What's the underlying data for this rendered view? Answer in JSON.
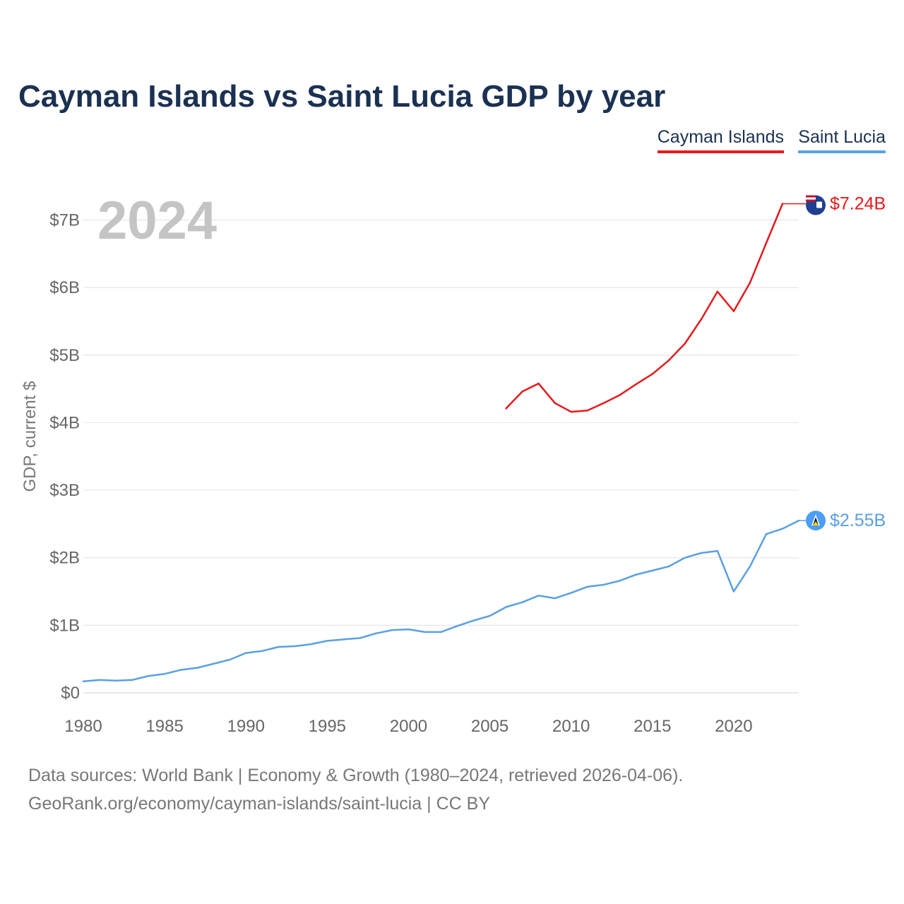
{
  "chart_data": {
    "type": "line",
    "title": "Cayman Islands vs Saint Lucia GDP by year",
    "ylabel": "GDP, current $",
    "xlabel": "",
    "year_label": "2024",
    "xlim": [
      1980,
      2024
    ],
    "ylim": [
      0,
      7.24
    ],
    "x_ticks": [
      1980,
      1985,
      1990,
      1995,
      2000,
      2005,
      2010,
      2015,
      2020
    ],
    "x_tick_labels": [
      "1980",
      "1985",
      "1990",
      "1995",
      "2000",
      "2005",
      "2010",
      "2015",
      "2020"
    ],
    "y_ticks": [
      0,
      1,
      2,
      3,
      4,
      5,
      6,
      7
    ],
    "y_tick_labels": [
      "$0",
      "$1B",
      "$2B",
      "$3B",
      "$4B",
      "$5B",
      "$6B",
      "$7B"
    ],
    "grid": true,
    "legend_position": "top-right",
    "series": [
      {
        "name": "Cayman Islands",
        "color": "#e41a1c",
        "end_label": "$7.24B",
        "flag_icon": "cayman-islands-flag-icon",
        "x": [
          2006,
          2007,
          2008,
          2009,
          2010,
          2011,
          2012,
          2013,
          2014,
          2015,
          2016,
          2017,
          2018,
          2019,
          2020,
          2021,
          2022,
          2023
        ],
        "values": [
          4.21,
          4.46,
          4.58,
          4.29,
          4.16,
          4.18,
          4.29,
          4.41,
          4.57,
          4.72,
          4.92,
          5.17,
          5.53,
          5.94,
          5.65,
          6.07,
          6.66,
          7.24
        ]
      },
      {
        "name": "Saint Lucia",
        "color": "#5aa0e0",
        "end_label": "$2.55B",
        "flag_icon": "saint-lucia-flag-icon",
        "x": [
          1980,
          1981,
          1982,
          1983,
          1984,
          1985,
          1986,
          1987,
          1988,
          1989,
          1990,
          1991,
          1992,
          1993,
          1994,
          1995,
          1996,
          1997,
          1998,
          1999,
          2000,
          2001,
          2002,
          2003,
          2004,
          2005,
          2006,
          2007,
          2008,
          2009,
          2010,
          2011,
          2012,
          2013,
          2014,
          2015,
          2016,
          2017,
          2018,
          2019,
          2020,
          2021,
          2022,
          2023,
          2024
        ],
        "values": [
          0.17,
          0.19,
          0.18,
          0.19,
          0.25,
          0.28,
          0.34,
          0.37,
          0.43,
          0.49,
          0.59,
          0.62,
          0.68,
          0.69,
          0.72,
          0.77,
          0.79,
          0.81,
          0.88,
          0.93,
          0.94,
          0.9,
          0.9,
          0.99,
          1.07,
          1.14,
          1.27,
          1.34,
          1.44,
          1.4,
          1.48,
          1.57,
          1.6,
          1.66,
          1.75,
          1.81,
          1.87,
          2.0,
          2.07,
          2.1,
          1.5,
          1.87,
          2.35,
          2.43,
          2.55
        ]
      }
    ]
  },
  "footer": {
    "sources": "Data sources: World Bank | Economy & Growth (1980–2024, retrieved 2026-04-06).",
    "credit": "GeoRank.org/economy/cayman-islands/saint-lucia | CC BY"
  }
}
